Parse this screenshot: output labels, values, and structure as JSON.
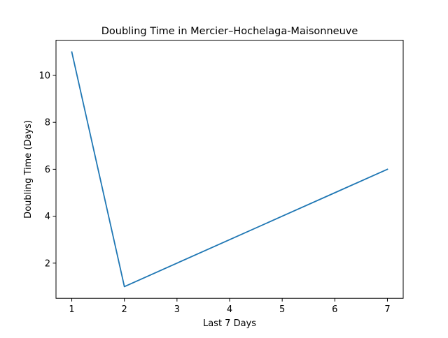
{
  "chart_data": {
    "type": "line",
    "title": "Doubling Time in  Mercier–Hochelaga-Maisonneuve",
    "xlabel": "Last 7 Days",
    "ylabel": "Doubling Time (Days)",
    "x": [
      1,
      2,
      3,
      4,
      5,
      6,
      7
    ],
    "series": [
      {
        "values": [
          11,
          1,
          2,
          3,
          4,
          5,
          6
        ],
        "color": "#1f77b4"
      }
    ],
    "xlim": [
      0.7,
      7.3
    ],
    "ylim": [
      0.5,
      11.5
    ],
    "xticks": [
      "1",
      "2",
      "3",
      "4",
      "5",
      "6",
      "7"
    ],
    "yticks": [
      "2",
      "4",
      "6",
      "8",
      "10"
    ],
    "grid": false,
    "legend": "none"
  }
}
